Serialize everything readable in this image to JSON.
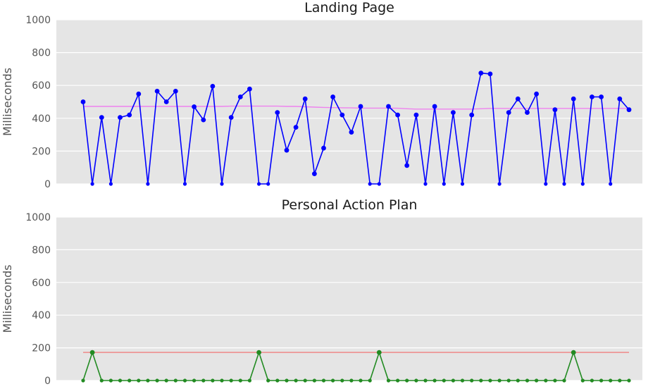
{
  "chart_data": [
    {
      "type": "line",
      "title": "Landing Page",
      "ylabel": "Milliseconds",
      "xlabel": "",
      "ylim": [
        0,
        1000
      ],
      "yticks": [
        0,
        200,
        400,
        600,
        800,
        1000
      ],
      "grid": true,
      "series": [
        {
          "color": "#0000ff",
          "marker": "circle",
          "values": [
            500,
            0,
            405,
            0,
            405,
            420,
            548,
            0,
            565,
            500,
            565,
            0,
            470,
            390,
            595,
            0,
            405,
            530,
            578,
            0,
            0,
            435,
            205,
            345,
            518,
            62,
            218,
            530,
            420,
            315,
            472,
            0,
            0,
            472,
            420,
            112,
            420,
            0,
            472,
            0,
            435,
            0,
            420,
            675,
            670,
            0,
            435,
            518,
            435,
            548,
            0,
            452,
            0,
            518,
            0,
            530,
            530,
            0,
            518,
            452
          ]
        },
        {
          "color": "#ee82ee",
          "marker": "none",
          "values": [
            472,
            472,
            472,
            472,
            472,
            472,
            472,
            472,
            472,
            472,
            472,
            472,
            472,
            472,
            472,
            472,
            474,
            474,
            474,
            474,
            474,
            474,
            472,
            472,
            470,
            468,
            466,
            465,
            464,
            463,
            462,
            462,
            462,
            462,
            461,
            458,
            456,
            456,
            456,
            456,
            456,
            456,
            456,
            458,
            460,
            460,
            460,
            460,
            460,
            460,
            460,
            460,
            460,
            460,
            460,
            460,
            460,
            460,
            460,
            460
          ]
        }
      ]
    },
    {
      "type": "line",
      "title": "Personal Action Plan",
      "ylabel": "Milliseconds",
      "xlabel": "",
      "ylim": [
        0,
        1000
      ],
      "yticks": [
        0,
        200,
        400,
        600,
        800,
        1000
      ],
      "grid": true,
      "series": [
        {
          "color": "#228b22",
          "marker": "circle",
          "values": [
            0,
            172,
            0,
            0,
            0,
            0,
            0,
            0,
            0,
            0,
            0,
            0,
            0,
            0,
            0,
            0,
            0,
            0,
            0,
            172,
            0,
            0,
            0,
            0,
            0,
            0,
            0,
            0,
            0,
            0,
            0,
            0,
            172,
            0,
            0,
            0,
            0,
            0,
            0,
            0,
            0,
            0,
            0,
            0,
            0,
            0,
            0,
            0,
            0,
            0,
            0,
            0,
            0,
            172,
            0,
            0,
            0,
            0,
            0,
            0
          ]
        },
        {
          "color": "#f08080",
          "marker": "none",
          "values": [
            172,
            172,
            172,
            172,
            172,
            172,
            172,
            172,
            172,
            172,
            172,
            172,
            172,
            172,
            172,
            172,
            172,
            172,
            172,
            172,
            172,
            172,
            172,
            172,
            172,
            172,
            172,
            172,
            172,
            172,
            172,
            172,
            172,
            172,
            172,
            172,
            172,
            172,
            172,
            172,
            172,
            172,
            172,
            172,
            172,
            172,
            172,
            172,
            172,
            172,
            172,
            172,
            172,
            172,
            172,
            172,
            172,
            172,
            172,
            172
          ]
        }
      ]
    }
  ]
}
